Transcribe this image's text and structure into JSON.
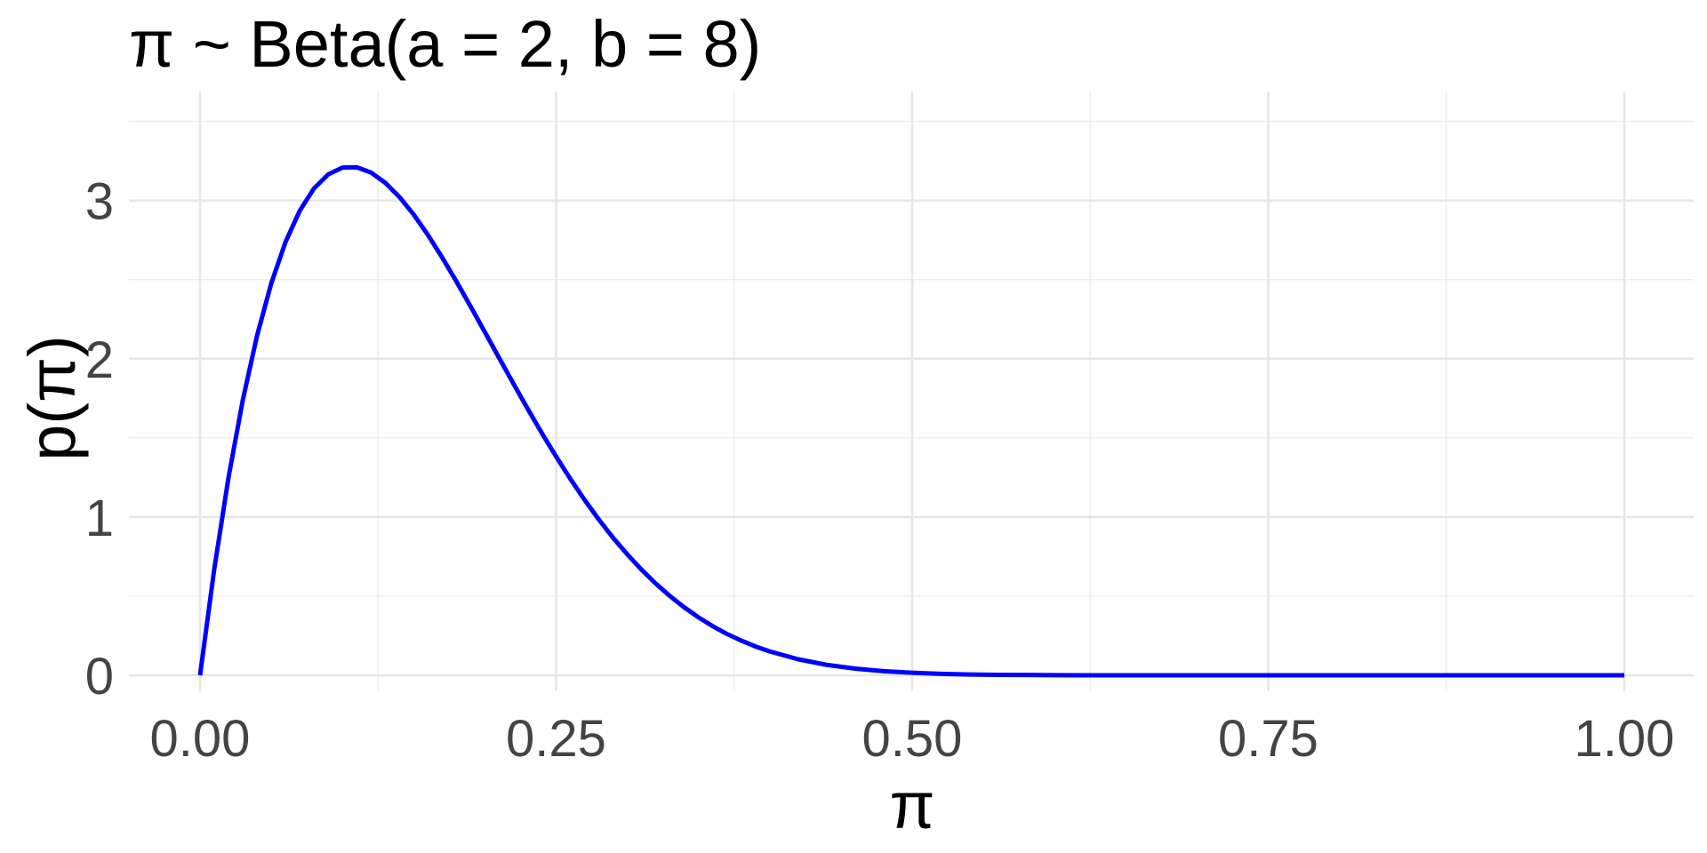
{
  "chart_data": {
    "type": "line",
    "title": "π ~ Beta(a = 2, b = 8)",
    "xlabel": "π",
    "ylabel": "p(π)",
    "xlim": [
      0,
      1
    ],
    "ylim": [
      0,
      3.52
    ],
    "x_ticks": [
      0,
      0.25,
      0.5,
      0.75,
      1
    ],
    "x_tick_labels": [
      "0.00",
      "0.25",
      "0.50",
      "0.75",
      "1.00"
    ],
    "y_ticks": [
      0,
      1,
      2,
      3
    ],
    "y_tick_labels": [
      "0",
      "1",
      "2",
      "3"
    ],
    "grid": true,
    "line_color": "#0000ff",
    "series": [
      {
        "x": [
          0,
          0.01,
          0.02,
          0.03,
          0.04,
          0.05,
          0.06,
          0.07,
          0.08,
          0.09,
          0.1,
          0.11,
          0.12,
          0.13,
          0.14,
          0.15,
          0.16,
          0.17,
          0.18,
          0.19,
          0.2,
          0.21,
          0.22,
          0.23,
          0.24,
          0.25,
          0.26,
          0.27,
          0.28,
          0.29,
          0.3,
          0.31,
          0.32,
          0.33,
          0.34,
          0.35,
          0.36,
          0.37,
          0.38,
          0.39,
          0.4,
          0.42,
          0.44,
          0.46,
          0.48,
          0.5,
          0.52,
          0.54,
          0.56,
          0.58,
          0.6,
          0.62,
          0.64,
          0.66,
          0.68,
          0.7,
          0.72,
          0.74,
          0.76,
          0.78,
          0.8,
          0.85,
          0.9,
          0.95,
          1
        ],
        "y": [
          0,
          0.672,
          1.25,
          1.738,
          2.145,
          2.476,
          2.737,
          2.935,
          3.076,
          3.165,
          3.208,
          3.21,
          3.177,
          3.112,
          3.022,
          2.911,
          2.782,
          2.64,
          2.488,
          2.33,
          2.168,
          2.005,
          1.843,
          1.684,
          1.53,
          1.382,
          1.241,
          1.108,
          0.984,
          0.869,
          0.764,
          0.667,
          0.579,
          0.5,
          0.429,
          0.366,
          0.31,
          0.261,
          0.219,
          0.182,
          0.151,
          0.101,
          0.066,
          0.042,
          0.026,
          0.016,
          0.009,
          0.005,
          0.003,
          0.002,
          0.001,
          0,
          0,
          0,
          0,
          0,
          0,
          0,
          0,
          0,
          0,
          0,
          0,
          0,
          0
        ]
      }
    ]
  }
}
